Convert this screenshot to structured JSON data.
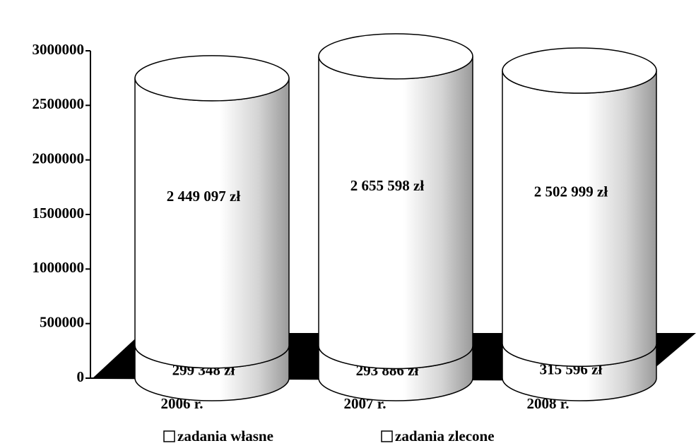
{
  "chart_data": {
    "type": "bar3d_cylinder_stacked",
    "categories": [
      "2006 r.",
      "2007 r.",
      "2008 r."
    ],
    "series": [
      {
        "name": "zadania własne",
        "color": "#ffffff",
        "values": [
          299348,
          293886,
          315596
        ],
        "value_labels": [
          "299 348 zł",
          "293 886 zł",
          "315 596 zł"
        ]
      },
      {
        "name": "zadania zlecone",
        "color": "#ffffff",
        "values": [
          2449097,
          2655598,
          2502999
        ],
        "value_labels": [
          "2 449 097 zł",
          "2 655 598 zł",
          "2 502 999 zł"
        ]
      }
    ],
    "ylim": [
      0,
      3000000
    ],
    "yticks": [
      0,
      500000,
      1000000,
      1500000,
      2000000,
      2500000,
      3000000
    ]
  }
}
